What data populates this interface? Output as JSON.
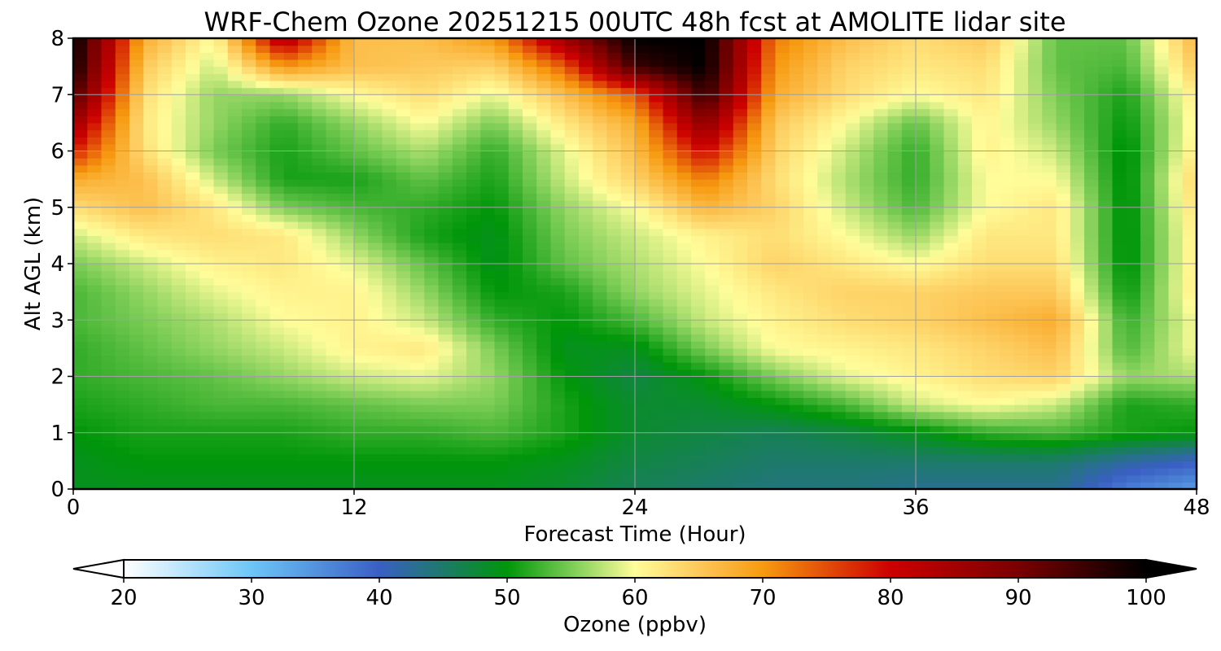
{
  "chart_data": {
    "type": "heatmap",
    "title": "WRF-Chem Ozone  20251215 00UTC 48h fcst at AMOLITE lidar site",
    "xlabel": "Forecast Time (Hour)",
    "ylabel": "Alt AGL (km)",
    "xlim": [
      0,
      48
    ],
    "ylim": [
      0,
      8
    ],
    "xticks": [
      "0",
      "12",
      "24",
      "36",
      "48"
    ],
    "yticks": [
      "0",
      "1",
      "2",
      "3",
      "4",
      "5",
      "6",
      "7",
      "8"
    ],
    "grid": true,
    "colorbar": {
      "label": "Ozone  (ppbv)",
      "range": [
        20,
        100
      ],
      "ticks": [
        "20",
        "30",
        "40",
        "50",
        "60",
        "70",
        "80",
        "90",
        "100"
      ],
      "extend": "both",
      "stops": [
        {
          "value": 20,
          "color": "#ffffff"
        },
        {
          "value": 30,
          "color": "#6cc6f7"
        },
        {
          "value": 40,
          "color": "#3a5fc4"
        },
        {
          "value": 45,
          "color": "#1d7a6a"
        },
        {
          "value": 50,
          "color": "#00960a"
        },
        {
          "value": 55,
          "color": "#7acc55"
        },
        {
          "value": 60,
          "color": "#fffd9a"
        },
        {
          "value": 65,
          "color": "#fdc85a"
        },
        {
          "value": 70,
          "color": "#f79a10"
        },
        {
          "value": 80,
          "color": "#cc0000"
        },
        {
          "value": 90,
          "color": "#7a0000"
        },
        {
          "value": 100,
          "color": "#000000"
        }
      ],
      "under_color": "#ffffff",
      "over_color": "#000000"
    },
    "x": [
      0,
      3,
      6,
      9,
      12,
      15,
      18,
      21,
      24,
      27,
      30,
      33,
      36,
      39,
      42,
      45,
      48
    ],
    "y": [
      0,
      0.5,
      1,
      1.5,
      2,
      2.5,
      3,
      3.5,
      4,
      4.5,
      5,
      5.5,
      6,
      6.5,
      7,
      7.5,
      8
    ],
    "z": [
      [
        49,
        49,
        49,
        49,
        49,
        49,
        49,
        48,
        46,
        45,
        44,
        44,
        43,
        43,
        43,
        37,
        34
      ],
      [
        49,
        50,
        50,
        50,
        50,
        50,
        50,
        49,
        47,
        46,
        45,
        45,
        45,
        45,
        45,
        42,
        40
      ],
      [
        50,
        51,
        51,
        51,
        52,
        52,
        53,
        51,
        48,
        47,
        46,
        47,
        49,
        52,
        53,
        51,
        50
      ],
      [
        51,
        52,
        53,
        53,
        54,
        55,
        55,
        51,
        48,
        48,
        50,
        53,
        58,
        60,
        58,
        51,
        52
      ],
      [
        52,
        53,
        54,
        56,
        58,
        59,
        56,
        50,
        47,
        50,
        55,
        59,
        61,
        63,
        64,
        56,
        57
      ],
      [
        52,
        54,
        56,
        58,
        61,
        62,
        55,
        49,
        49,
        55,
        60,
        61,
        62,
        64,
        66,
        53,
        60
      ],
      [
        53,
        55,
        57,
        60,
        61,
        58,
        52,
        50,
        53,
        58,
        61,
        63,
        64,
        66,
        68,
        52,
        60
      ],
      [
        53,
        56,
        59,
        61,
        61,
        56,
        50,
        51,
        56,
        59,
        62,
        64,
        64,
        65,
        65,
        50,
        62
      ],
      [
        55,
        58,
        61,
        62,
        59,
        54,
        49,
        54,
        57,
        60,
        64,
        62,
        60,
        63,
        63,
        49,
        62
      ],
      [
        58,
        62,
        63,
        62,
        56,
        51,
        49,
        55,
        58,
        61,
        63,
        60,
        56,
        62,
        62,
        49,
        62
      ],
      [
        63,
        66,
        62,
        55,
        53,
        52,
        50,
        56,
        60,
        67,
        64,
        58,
        53,
        60,
        62,
        49,
        63
      ],
      [
        68,
        66,
        58,
        51,
        51,
        54,
        51,
        58,
        64,
        72,
        63,
        57,
        52,
        60,
        60,
        49,
        64
      ],
      [
        78,
        63,
        55,
        51,
        54,
        57,
        52,
        59,
        66,
        80,
        64,
        58,
        52,
        61,
        58,
        49,
        62
      ],
      [
        86,
        62,
        56,
        52,
        56,
        60,
        55,
        62,
        68,
        88,
        65,
        60,
        54,
        61,
        56,
        50,
        61
      ],
      [
        94,
        63,
        56,
        56,
        60,
        63,
        59,
        66,
        74,
        96,
        68,
        63,
        60,
        62,
        55,
        51,
        62
      ],
      [
        99,
        65,
        58,
        70,
        66,
        65,
        64,
        74,
        95,
        100,
        70,
        64,
        62,
        63,
        54,
        53,
        65
      ],
      [
        100,
        68,
        60,
        84,
        66,
        66,
        70,
        86,
        100,
        100,
        72,
        66,
        63,
        65,
        54,
        54,
        67
      ]
    ]
  }
}
